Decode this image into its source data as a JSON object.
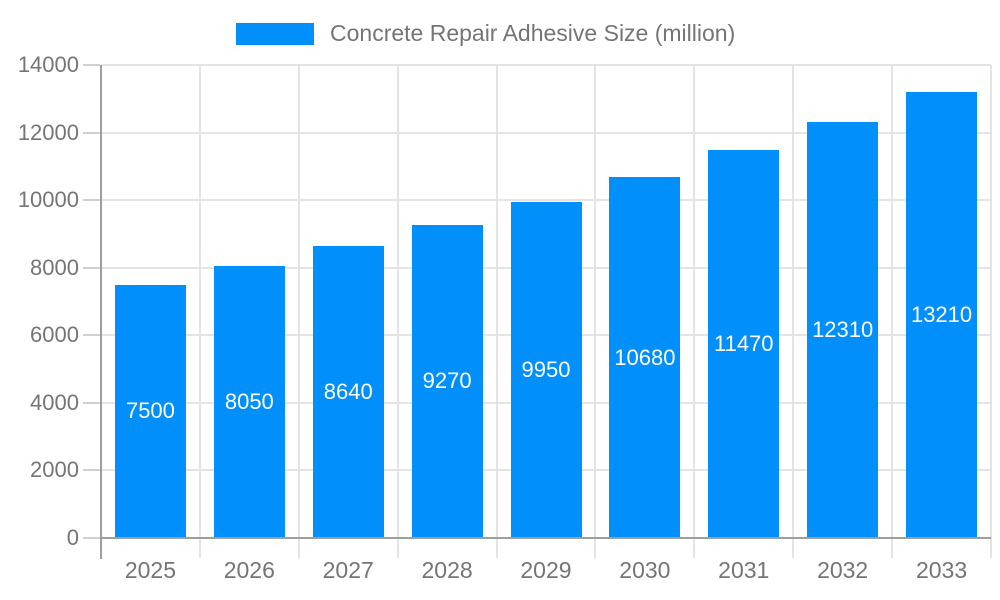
{
  "chart_data": {
    "type": "bar",
    "title": "",
    "legend": {
      "label": "Concrete Repair Adhesive Size (million)",
      "position": "top"
    },
    "categories": [
      "2025",
      "2026",
      "2027",
      "2028",
      "2029",
      "2030",
      "2031",
      "2032",
      "2033"
    ],
    "series": [
      {
        "name": "Concrete Repair Adhesive Size (million)",
        "values": [
          7500,
          8050,
          8640,
          9270,
          9950,
          10680,
          11470,
          12310,
          13210
        ]
      }
    ],
    "xlabel": "",
    "ylabel": "",
    "ylim": [
      0,
      14000
    ],
    "ytick_step": 2000,
    "ytick_labels": [
      "0",
      "2000",
      "4000",
      "6000",
      "8000",
      "10000",
      "12000",
      "14000"
    ],
    "grid": "horizontal and vertical",
    "legend_position": "top",
    "bar_labels_shown": true,
    "colors": {
      "bar": "#008FFB",
      "bar_label_text": "#ffffff",
      "axis_line": "#9e9e9e",
      "gridline": "#e4e4e4",
      "y_tick": "#d0d0d0",
      "x_tick": "#e4e4e4",
      "axis_label_text": "#757575",
      "legend_text": "#757575",
      "background": "#ffffff"
    }
  }
}
